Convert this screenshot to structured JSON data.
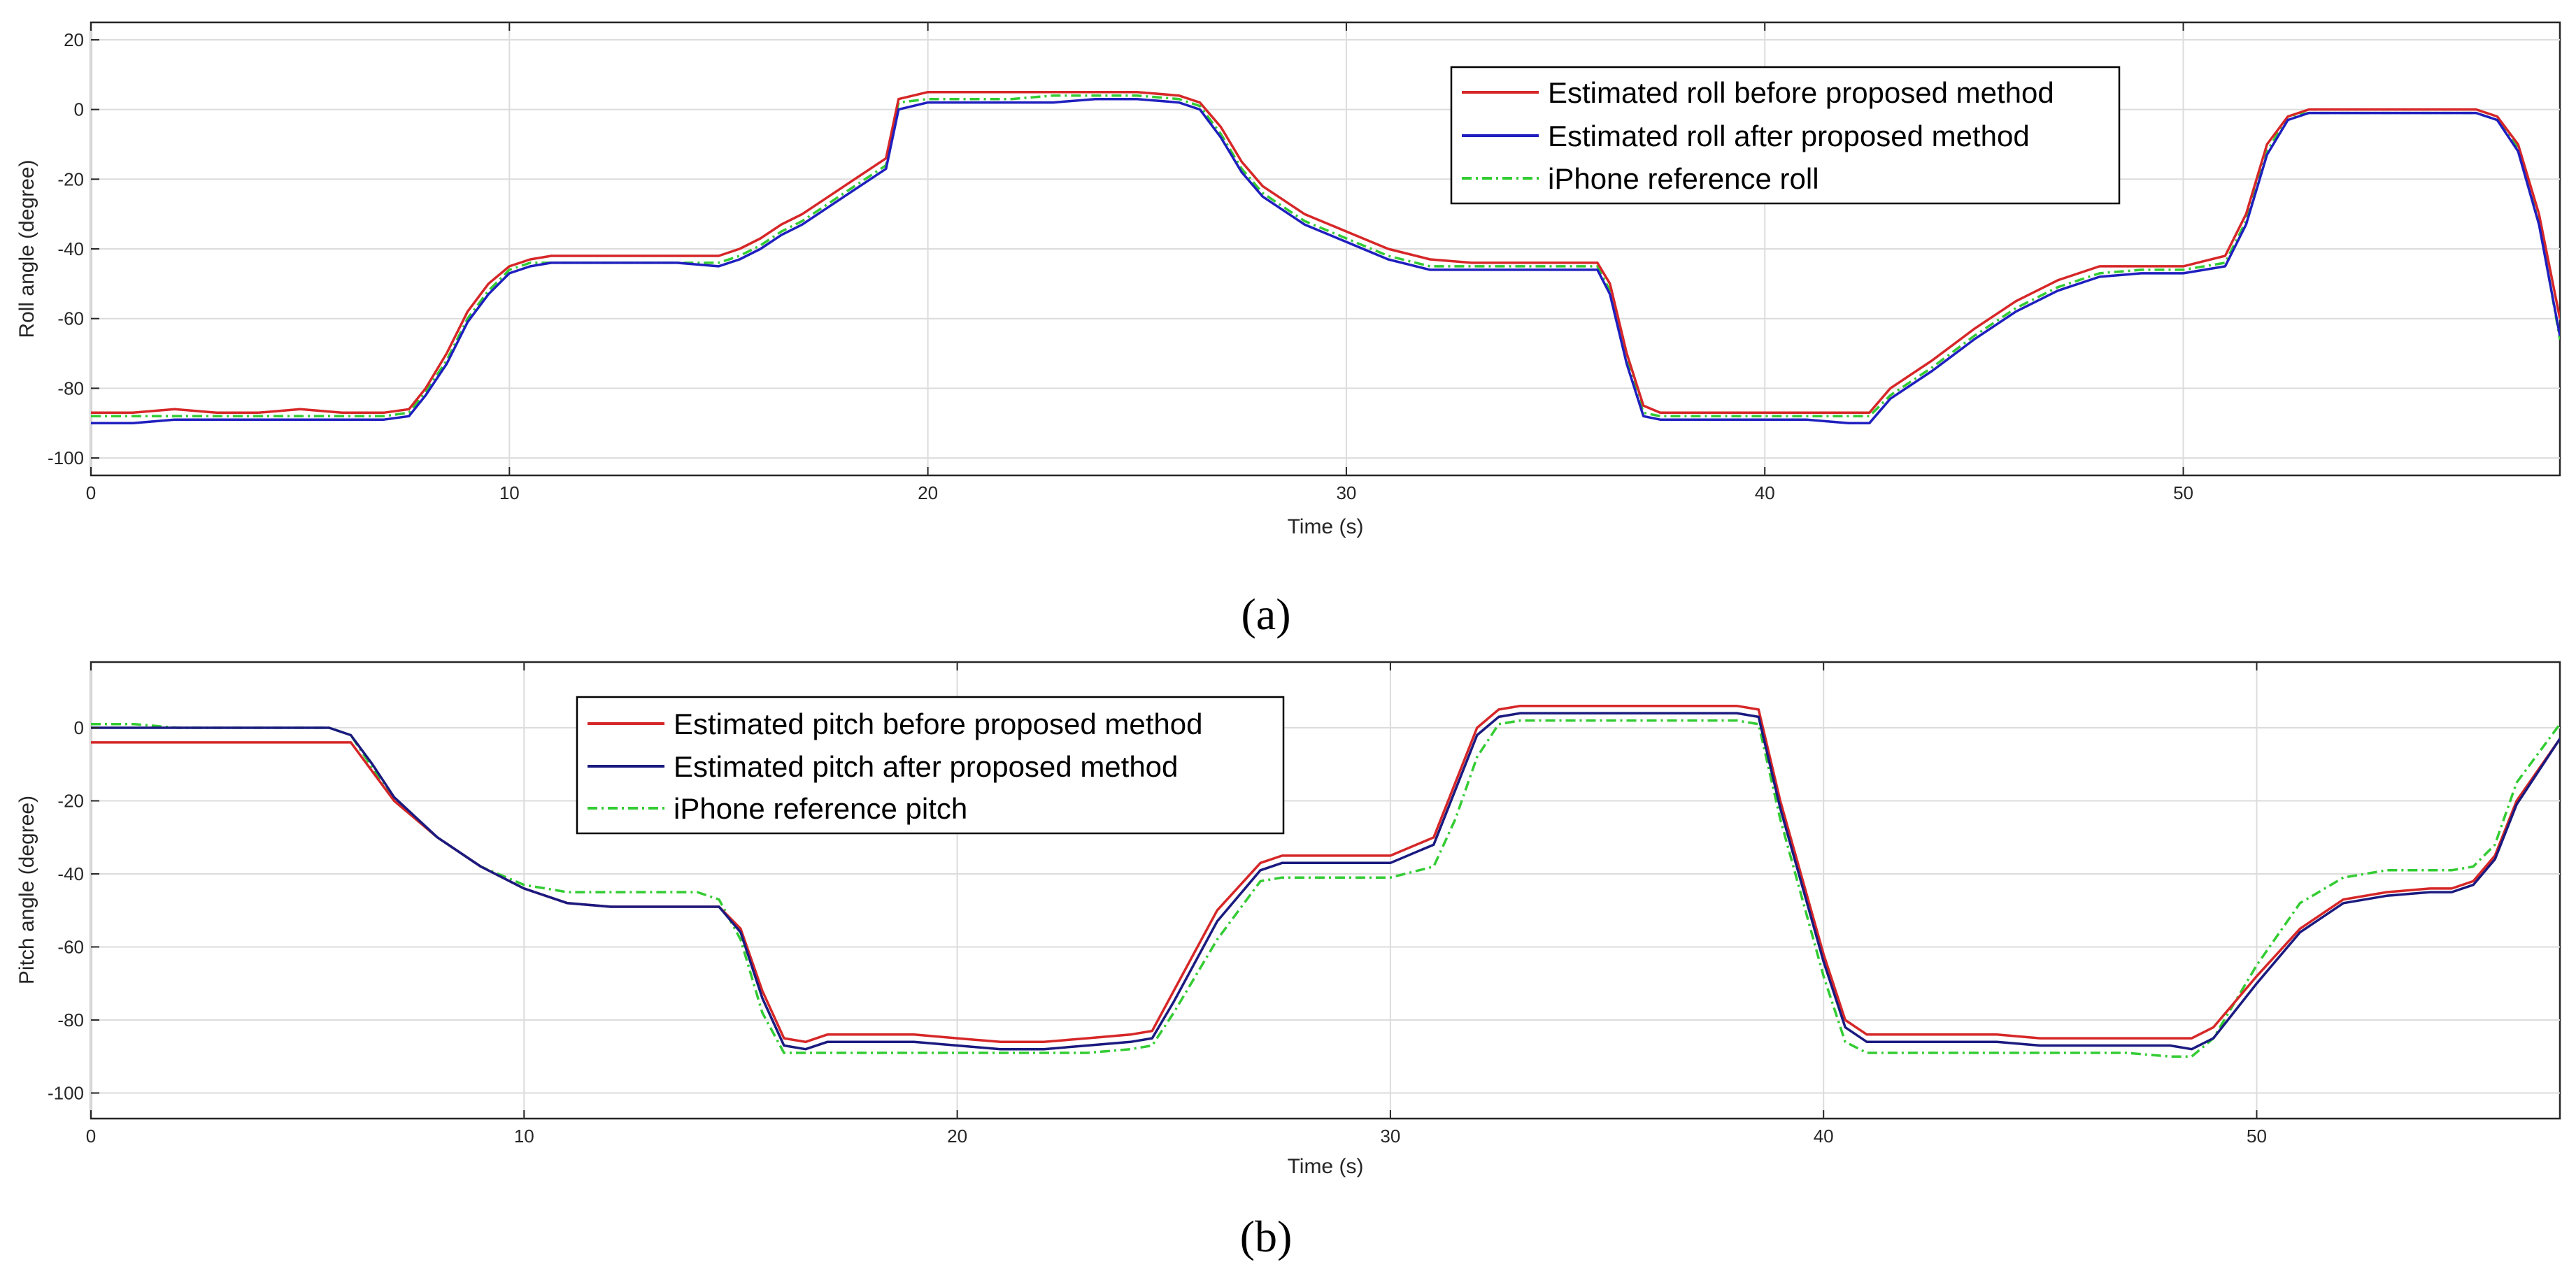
{
  "chart_data": [
    {
      "type": "line",
      "panel_caption": "(a)",
      "xlabel": "Time (s)",
      "ylabel": "Roll angle (degree)",
      "xlim": [
        0,
        59
      ],
      "ylim": [
        -105,
        25
      ],
      "xticks": [
        0,
        10,
        20,
        30,
        40,
        50
      ],
      "yticks": [
        20,
        0,
        -20,
        -40,
        -60,
        -80,
        -100
      ],
      "grid": true,
      "legend_position": "top-right",
      "series": [
        {
          "name": "Estimated roll before proposed method",
          "color": "#d62728",
          "style": "solid",
          "x": [
            0,
            1,
            2,
            3,
            4,
            5,
            6,
            7,
            7.6,
            8,
            8.5,
            9,
            9.5,
            10,
            10.5,
            11,
            12,
            13,
            14,
            15,
            15.5,
            16,
            16.5,
            17,
            18,
            19,
            19.3,
            20,
            21,
            22,
            23,
            24,
            25,
            26,
            26.5,
            27,
            27.5,
            28,
            29,
            30,
            31,
            32,
            33,
            34,
            35,
            36,
            36.3,
            36.7,
            37.1,
            37.5,
            38,
            39,
            40,
            41,
            42,
            42.5,
            43,
            44,
            45,
            46,
            47,
            48,
            49,
            50,
            51,
            51.5,
            52,
            52.5,
            53,
            54,
            55,
            56,
            57,
            57.5,
            58,
            58.5,
            59
          ],
          "y": [
            -87,
            -87,
            -86,
            -87,
            -87,
            -86,
            -87,
            -87,
            -86,
            -80,
            -70,
            -58,
            -50,
            -45,
            -43,
            -42,
            -42,
            -42,
            -42,
            -42,
            -40,
            -37,
            -33,
            -30,
            -22,
            -14,
            3,
            5,
            5,
            5,
            5,
            5,
            5,
            4,
            2,
            -5,
            -15,
            -22,
            -30,
            -35,
            -40,
            -43,
            -44,
            -44,
            -44,
            -44,
            -50,
            -70,
            -85,
            -87,
            -87,
            -87,
            -87,
            -87,
            -87,
            -87,
            -80,
            -72,
            -63,
            -55,
            -49,
            -45,
            -45,
            -45,
            -42,
            -30,
            -10,
            -2,
            0,
            0,
            0,
            0,
            0,
            -2,
            -10,
            -30,
            -60
          ]
        },
        {
          "name": "Estimated roll after proposed method",
          "color": "#1f1fbf",
          "style": "solid",
          "x": [
            0,
            1,
            2,
            3,
            4,
            5,
            6,
            7,
            7.6,
            8,
            8.5,
            9,
            9.5,
            10,
            10.5,
            11,
            12,
            13,
            14,
            15,
            15.5,
            16,
            16.5,
            17,
            18,
            19,
            19.3,
            20,
            21,
            22,
            23,
            24,
            25,
            26,
            26.5,
            27,
            27.5,
            28,
            29,
            30,
            31,
            32,
            33,
            34,
            35,
            36,
            36.3,
            36.7,
            37.1,
            37.5,
            38,
            39,
            40,
            41,
            42,
            42.5,
            43,
            44,
            45,
            46,
            47,
            48,
            49,
            50,
            51,
            51.5,
            52,
            52.5,
            53,
            54,
            55,
            56,
            57,
            57.5,
            58,
            58.5,
            59
          ],
          "y": [
            -90,
            -90,
            -89,
            -89,
            -89,
            -89,
            -89,
            -89,
            -88,
            -82,
            -73,
            -61,
            -53,
            -47,
            -45,
            -44,
            -44,
            -44,
            -44,
            -45,
            -43,
            -40,
            -36,
            -33,
            -25,
            -17,
            0,
            2,
            2,
            2,
            2,
            3,
            3,
            2,
            0,
            -8,
            -18,
            -25,
            -33,
            -38,
            -43,
            -46,
            -46,
            -46,
            -46,
            -46,
            -53,
            -73,
            -88,
            -89,
            -89,
            -89,
            -89,
            -89,
            -90,
            -90,
            -83,
            -75,
            -66,
            -58,
            -52,
            -48,
            -47,
            -47,
            -45,
            -33,
            -13,
            -3,
            -1,
            -1,
            -1,
            -1,
            -1,
            -3,
            -12,
            -33,
            -65
          ]
        },
        {
          "name": "iPhone reference roll",
          "color": "#33cc33",
          "style": "dashdot",
          "x": [
            0,
            1,
            2,
            3,
            4,
            5,
            6,
            7,
            7.6,
            8,
            8.5,
            9,
            9.5,
            10,
            10.5,
            11,
            12,
            13,
            14,
            15,
            15.5,
            16,
            16.5,
            17,
            18,
            19,
            19.3,
            20,
            21,
            22,
            23,
            24,
            25,
            26,
            26.5,
            27,
            27.5,
            28,
            29,
            30,
            31,
            32,
            33,
            34,
            35,
            36,
            36.3,
            36.7,
            37.1,
            37.5,
            38,
            39,
            40,
            41,
            42,
            42.5,
            43,
            44,
            45,
            46,
            47,
            48,
            49,
            50,
            51,
            51.5,
            52,
            52.5,
            53,
            54,
            55,
            56,
            57,
            57.5,
            58,
            58.5,
            59
          ],
          "y": [
            -88,
            -88,
            -88,
            -88,
            -88,
            -88,
            -88,
            -88,
            -87,
            -81,
            -72,
            -60,
            -52,
            -46,
            -44,
            -44,
            -44,
            -44,
            -44,
            -44,
            -42,
            -39,
            -35,
            -32,
            -24,
            -16,
            2,
            3,
            3,
            3,
            4,
            4,
            4,
            3,
            1,
            -7,
            -17,
            -24,
            -32,
            -37,
            -42,
            -45,
            -45,
            -45,
            -45,
            -45,
            -52,
            -72,
            -87,
            -88,
            -88,
            -88,
            -88,
            -88,
            -88,
            -88,
            -82,
            -74,
            -65,
            -57,
            -51,
            -47,
            -46,
            -46,
            -44,
            -32,
            -12,
            -2,
            -1,
            -1,
            -1,
            -1,
            -1,
            -3,
            -11,
            -32,
            -66
          ]
        }
      ]
    },
    {
      "type": "line",
      "panel_caption": "(b)",
      "xlabel": "Time (s)",
      "ylabel": "Pitch angle (degree)",
      "xlim": [
        0,
        57
      ],
      "ylim": [
        -107,
        18
      ],
      "xticks": [
        0,
        10,
        20,
        30,
        40,
        50
      ],
      "yticks": [
        0,
        -20,
        -40,
        -60,
        -80,
        -100
      ],
      "grid": true,
      "legend_position": "top-left",
      "series": [
        {
          "name": "Estimated pitch before proposed method",
          "color": "#d62728",
          "style": "solid",
          "x": [
            0,
            1,
            2,
            3,
            4,
            5,
            5.5,
            6,
            6.5,
            7,
            8,
            9,
            10,
            11,
            12,
            13,
            14,
            14.5,
            15,
            15.5,
            16,
            16.5,
            17,
            18,
            19,
            20,
            21,
            22,
            23,
            24,
            24.5,
            25,
            26,
            27,
            27.5,
            28,
            29,
            30,
            31,
            31.5,
            32,
            32.5,
            33,
            34,
            35,
            36,
            37,
            38,
            38.5,
            39,
            40,
            40.5,
            41,
            42,
            43,
            44,
            45,
            46,
            47,
            48,
            48.5,
            49,
            50,
            51,
            52,
            53,
            54,
            54.5,
            55,
            55.5,
            56,
            57
          ],
          "y": [
            -4,
            -4,
            -4,
            -4,
            -4,
            -4,
            -4,
            -4,
            -12,
            -20,
            -30,
            -38,
            -44,
            -48,
            -49,
            -49,
            -49,
            -49,
            -55,
            -72,
            -85,
            -86,
            -84,
            -84,
            -84,
            -85,
            -86,
            -86,
            -85,
            -84,
            -83,
            -72,
            -50,
            -37,
            -35,
            -35,
            -35,
            -35,
            -30,
            -15,
            0,
            5,
            6,
            6,
            6,
            6,
            6,
            6,
            5,
            -20,
            -62,
            -80,
            -84,
            -84,
            -84,
            -84,
            -85,
            -85,
            -85,
            -85,
            -85,
            -82,
            -68,
            -55,
            -47,
            -45,
            -44,
            -44,
            -42,
            -35,
            -20,
            -3
          ]
        },
        {
          "name": "Estimated pitch after proposed method",
          "color": "#1a1a80",
          "style": "solid",
          "x": [
            0,
            1,
            2,
            3,
            4,
            5,
            5.5,
            6,
            6.5,
            7,
            8,
            9,
            10,
            11,
            12,
            13,
            14,
            14.5,
            15,
            15.5,
            16,
            16.5,
            17,
            18,
            19,
            20,
            21,
            22,
            23,
            24,
            24.5,
            25,
            26,
            27,
            27.5,
            28,
            29,
            30,
            31,
            31.5,
            32,
            32.5,
            33,
            34,
            35,
            36,
            37,
            38,
            38.5,
            39,
            40,
            40.5,
            41,
            42,
            43,
            44,
            45,
            46,
            47,
            48,
            48.5,
            49,
            50,
            51,
            52,
            53,
            54,
            54.5,
            55,
            55.5,
            56,
            57
          ],
          "y": [
            0,
            0,
            0,
            0,
            0,
            0,
            0,
            -2,
            -10,
            -19,
            -30,
            -38,
            -44,
            -48,
            -49,
            -49,
            -49,
            -49,
            -56,
            -74,
            -87,
            -88,
            -86,
            -86,
            -86,
            -87,
            -88,
            -88,
            -87,
            -86,
            -85,
            -75,
            -53,
            -39,
            -37,
            -37,
            -37,
            -37,
            -32,
            -17,
            -2,
            3,
            4,
            4,
            4,
            4,
            4,
            4,
            3,
            -22,
            -64,
            -82,
            -86,
            -86,
            -86,
            -86,
            -87,
            -87,
            -87,
            -87,
            -88,
            -85,
            -70,
            -56,
            -48,
            -46,
            -45,
            -45,
            -43,
            -36,
            -21,
            -3
          ]
        },
        {
          "name": "iPhone reference pitch",
          "color": "#33cc33",
          "style": "dashdot",
          "x": [
            0,
            1,
            2,
            3,
            4,
            5,
            5.5,
            6,
            6.5,
            7,
            8,
            9,
            10,
            11,
            12,
            13,
            14,
            14.5,
            15,
            15.5,
            16,
            16.5,
            17,
            18,
            19,
            20,
            21,
            22,
            23,
            24,
            24.5,
            25,
            26,
            27,
            27.5,
            28,
            29,
            30,
            31,
            31.5,
            32,
            32.5,
            33,
            34,
            35,
            36,
            37,
            38,
            38.5,
            39,
            40,
            40.5,
            41,
            42,
            43,
            44,
            45,
            46,
            47,
            48,
            48.5,
            49,
            50,
            51,
            52,
            53,
            54,
            54.5,
            55,
            55.5,
            56,
            57
          ],
          "y": [
            1,
            1,
            0,
            0,
            0,
            0,
            0,
            -2,
            -11,
            -20,
            -30,
            -38,
            -43,
            -45,
            -45,
            -45,
            -45,
            -47,
            -58,
            -78,
            -89,
            -89,
            -89,
            -89,
            -89,
            -89,
            -89,
            -89,
            -89,
            -88,
            -87,
            -78,
            -58,
            -42,
            -41,
            -41,
            -41,
            -41,
            -38,
            -25,
            -8,
            1,
            2,
            2,
            2,
            2,
            2,
            2,
            1,
            -25,
            -68,
            -86,
            -89,
            -89,
            -89,
            -89,
            -89,
            -89,
            -89,
            -90,
            -90,
            -85,
            -65,
            -48,
            -41,
            -39,
            -39,
            -39,
            -38,
            -32,
            -15,
            1
          ]
        }
      ]
    }
  ]
}
